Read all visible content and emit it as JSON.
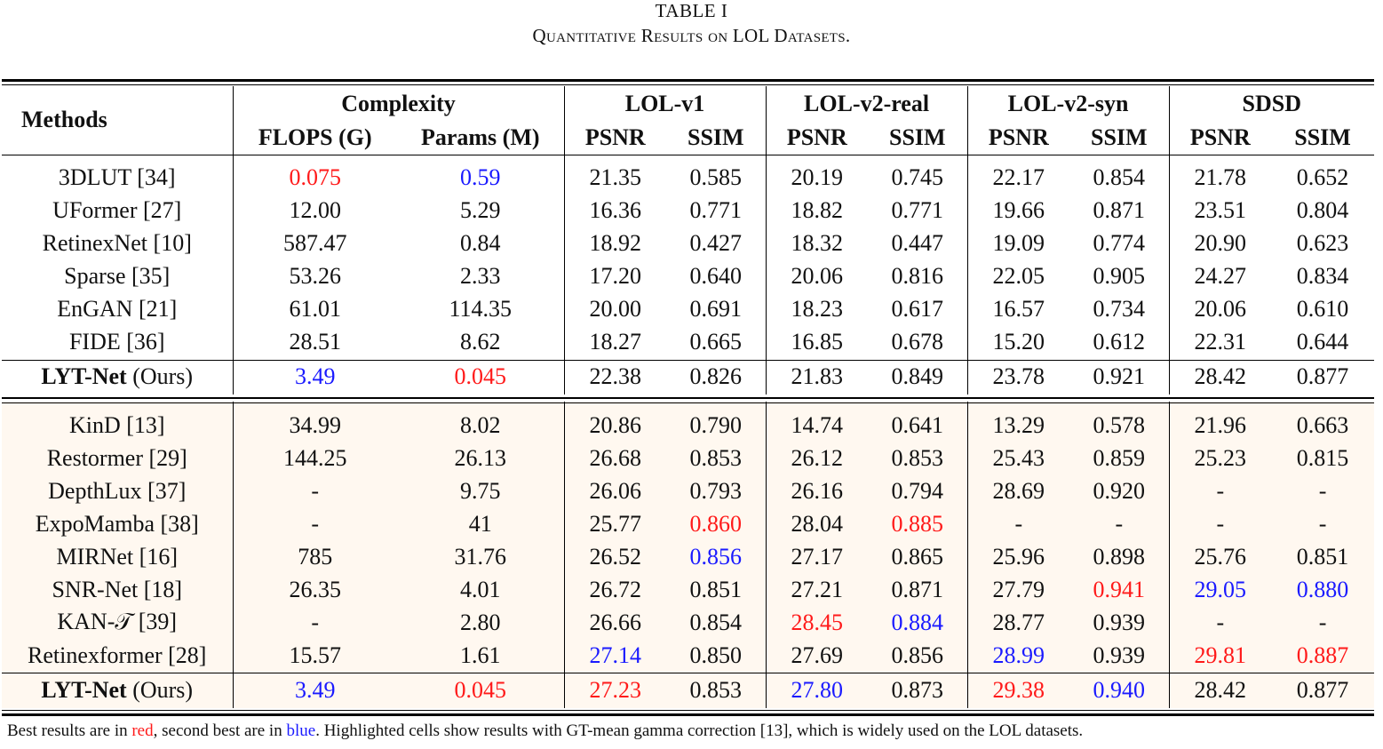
{
  "caption": {
    "table_number": "TABLE I",
    "title": "Quantitative Results on LOL Datasets."
  },
  "header": {
    "methods": "Methods",
    "complexity": "Complexity",
    "flops": "FLOPS (G)",
    "params": "Params (M)",
    "datasets": [
      "LOL-v1",
      "LOL-v2-real",
      "LOL-v2-syn",
      "SDSD"
    ],
    "metrics": [
      "PSNR",
      "SSIM"
    ]
  },
  "colors": {
    "best": "#ff1a1a",
    "second": "#1a1aff",
    "highlight_bg": "#fff8f0"
  },
  "group1": [
    {
      "method": "3DLUT [34]",
      "cells": [
        {
          "v": "0.075",
          "c": "red"
        },
        {
          "v": "0.59",
          "c": "blue"
        },
        {
          "v": "21.35"
        },
        {
          "v": "0.585"
        },
        {
          "v": "20.19"
        },
        {
          "v": "0.745"
        },
        {
          "v": "22.17"
        },
        {
          "v": "0.854"
        },
        {
          "v": "21.78"
        },
        {
          "v": "0.652"
        }
      ]
    },
    {
      "method": "UFormer [27]",
      "cells": [
        {
          "v": "12.00"
        },
        {
          "v": "5.29"
        },
        {
          "v": "16.36"
        },
        {
          "v": "0.771"
        },
        {
          "v": "18.82"
        },
        {
          "v": "0.771"
        },
        {
          "v": "19.66"
        },
        {
          "v": "0.871"
        },
        {
          "v": "23.51"
        },
        {
          "v": "0.804"
        }
      ]
    },
    {
      "method": "RetinexNet [10]",
      "cells": [
        {
          "v": "587.47"
        },
        {
          "v": "0.84"
        },
        {
          "v": "18.92"
        },
        {
          "v": "0.427"
        },
        {
          "v": "18.32"
        },
        {
          "v": "0.447"
        },
        {
          "v": "19.09"
        },
        {
          "v": "0.774"
        },
        {
          "v": "20.90"
        },
        {
          "v": "0.623"
        }
      ]
    },
    {
      "method": "Sparse [35]",
      "cells": [
        {
          "v": "53.26"
        },
        {
          "v": "2.33"
        },
        {
          "v": "17.20"
        },
        {
          "v": "0.640"
        },
        {
          "v": "20.06"
        },
        {
          "v": "0.816"
        },
        {
          "v": "22.05"
        },
        {
          "v": "0.905"
        },
        {
          "v": "24.27"
        },
        {
          "v": "0.834"
        }
      ]
    },
    {
      "method": "EnGAN [21]",
      "cells": [
        {
          "v": "61.01"
        },
        {
          "v": "114.35"
        },
        {
          "v": "20.00"
        },
        {
          "v": "0.691"
        },
        {
          "v": "18.23"
        },
        {
          "v": "0.617"
        },
        {
          "v": "16.57"
        },
        {
          "v": "0.734"
        },
        {
          "v": "20.06"
        },
        {
          "v": "0.610"
        }
      ]
    },
    {
      "method": "FIDE [36]",
      "cells": [
        {
          "v": "28.51"
        },
        {
          "v": "8.62"
        },
        {
          "v": "18.27"
        },
        {
          "v": "0.665"
        },
        {
          "v": "16.85"
        },
        {
          "v": "0.678"
        },
        {
          "v": "15.20"
        },
        {
          "v": "0.612"
        },
        {
          "v": "22.31"
        },
        {
          "v": "0.644"
        }
      ]
    }
  ],
  "ours1": {
    "name": "LYT-Net",
    "suffix": "(Ours)",
    "cells": [
      {
        "v": "3.49",
        "c": "blue"
      },
      {
        "v": "0.045",
        "c": "red"
      },
      {
        "v": "22.38"
      },
      {
        "v": "0.826"
      },
      {
        "v": "21.83"
      },
      {
        "v": "0.849"
      },
      {
        "v": "23.78"
      },
      {
        "v": "0.921"
      },
      {
        "v": "28.42"
      },
      {
        "v": "0.877"
      }
    ]
  },
  "group2": [
    {
      "method": "KinD [13]",
      "cells": [
        {
          "v": "34.99"
        },
        {
          "v": "8.02"
        },
        {
          "v": "20.86"
        },
        {
          "v": "0.790"
        },
        {
          "v": "14.74"
        },
        {
          "v": "0.641"
        },
        {
          "v": "13.29"
        },
        {
          "v": "0.578"
        },
        {
          "v": "21.96"
        },
        {
          "v": "0.663"
        }
      ]
    },
    {
      "method": "Restormer [29]",
      "cells": [
        {
          "v": "144.25"
        },
        {
          "v": "26.13"
        },
        {
          "v": "26.68"
        },
        {
          "v": "0.853"
        },
        {
          "v": "26.12"
        },
        {
          "v": "0.853"
        },
        {
          "v": "25.43"
        },
        {
          "v": "0.859"
        },
        {
          "v": "25.23"
        },
        {
          "v": "0.815"
        }
      ]
    },
    {
      "method": "DepthLux [37]",
      "cells": [
        {
          "v": "-"
        },
        {
          "v": "9.75"
        },
        {
          "v": "26.06"
        },
        {
          "v": "0.793"
        },
        {
          "v": "26.16"
        },
        {
          "v": "0.794"
        },
        {
          "v": "28.69"
        },
        {
          "v": "0.920"
        },
        {
          "v": "-"
        },
        {
          "v": "-"
        }
      ]
    },
    {
      "method": "ExpoMamba [38]",
      "cells": [
        {
          "v": "-"
        },
        {
          "v": "41"
        },
        {
          "v": "25.77"
        },
        {
          "v": "0.860",
          "c": "red"
        },
        {
          "v": "28.04"
        },
        {
          "v": "0.885",
          "c": "red"
        },
        {
          "v": "-"
        },
        {
          "v": "-"
        },
        {
          "v": "-"
        },
        {
          "v": "-"
        }
      ]
    },
    {
      "method": "MIRNet [16]",
      "cells": [
        {
          "v": "785"
        },
        {
          "v": "31.76"
        },
        {
          "v": "26.52"
        },
        {
          "v": "0.856",
          "c": "blue"
        },
        {
          "v": "27.17"
        },
        {
          "v": "0.865"
        },
        {
          "v": "25.96"
        },
        {
          "v": "0.898"
        },
        {
          "v": "25.76"
        },
        {
          "v": "0.851"
        }
      ]
    },
    {
      "method": "SNR-Net [18]",
      "cells": [
        {
          "v": "26.35"
        },
        {
          "v": "4.01"
        },
        {
          "v": "26.72"
        },
        {
          "v": "0.851"
        },
        {
          "v": "27.21"
        },
        {
          "v": "0.871"
        },
        {
          "v": "27.79"
        },
        {
          "v": "0.941",
          "c": "red"
        },
        {
          "v": "29.05",
          "c": "blue"
        },
        {
          "v": "0.880",
          "c": "blue"
        }
      ]
    },
    {
      "method": "KAN-𝒯 [39]",
      "cells": [
        {
          "v": "-"
        },
        {
          "v": "2.80"
        },
        {
          "v": "26.66"
        },
        {
          "v": "0.854"
        },
        {
          "v": "28.45",
          "c": "red"
        },
        {
          "v": "0.884",
          "c": "blue"
        },
        {
          "v": "28.77"
        },
        {
          "v": "0.939"
        },
        {
          "v": "-"
        },
        {
          "v": "-"
        }
      ]
    },
    {
      "method": "Retinexformer [28]",
      "cells": [
        {
          "v": "15.57"
        },
        {
          "v": "1.61"
        },
        {
          "v": "27.14",
          "c": "blue"
        },
        {
          "v": "0.850"
        },
        {
          "v": "27.69"
        },
        {
          "v": "0.856"
        },
        {
          "v": "28.99",
          "c": "blue"
        },
        {
          "v": "0.939"
        },
        {
          "v": "29.81",
          "c": "red"
        },
        {
          "v": "0.887",
          "c": "red"
        }
      ]
    }
  ],
  "ours2": {
    "name": "LYT-Net",
    "suffix": "(Ours)",
    "cells": [
      {
        "v": "3.49",
        "c": "blue"
      },
      {
        "v": "0.045",
        "c": "red"
      },
      {
        "v": "27.23",
        "c": "red"
      },
      {
        "v": "0.853"
      },
      {
        "v": "27.80",
        "c": "blue"
      },
      {
        "v": "0.873"
      },
      {
        "v": "29.38",
        "c": "red"
      },
      {
        "v": "0.940",
        "c": "blue"
      },
      {
        "v": "28.42"
      },
      {
        "v": "0.877"
      }
    ]
  },
  "footnote": {
    "part1": "Best results are in ",
    "red_word": "red",
    "part2": ", second best are in ",
    "blue_word": "blue",
    "part3": ". Highlighted cells show results with GT-mean gamma correction [13], which is widely used on the LOL datasets."
  }
}
